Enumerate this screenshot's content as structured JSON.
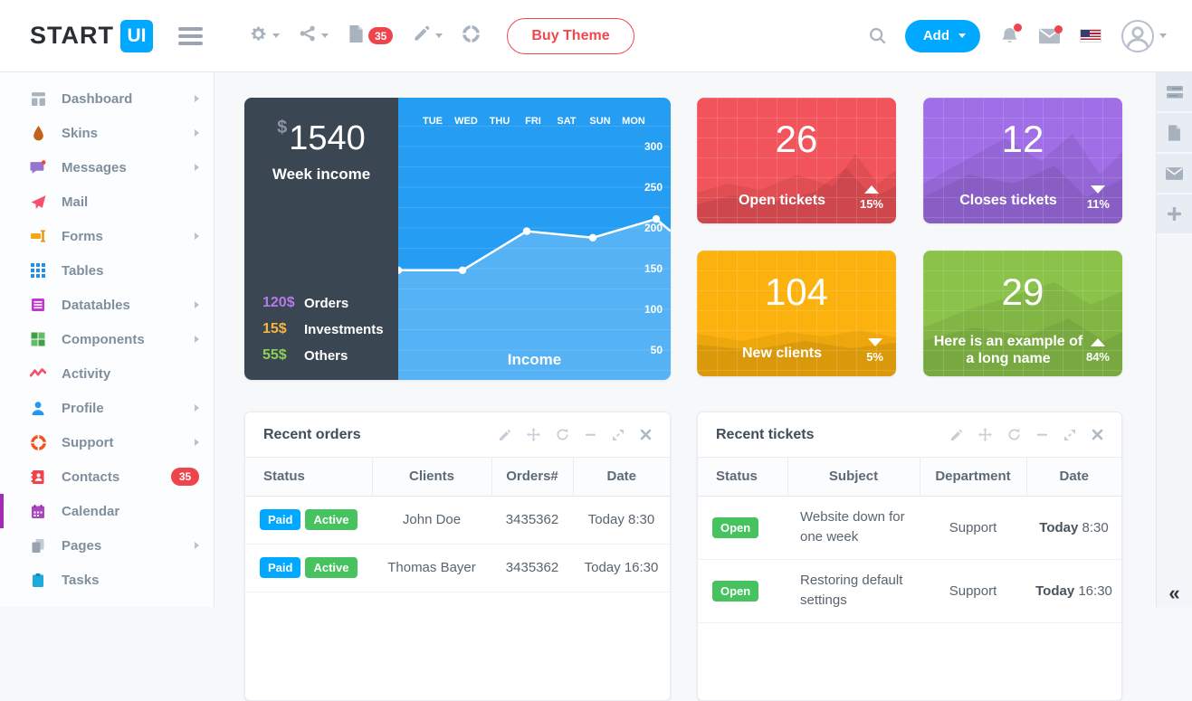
{
  "colors": {
    "accent": "#00a8ff",
    "red": "#f2545b",
    "purple": "#a06ee6",
    "yellow": "#fcb20e",
    "green": "#8ac24a",
    "badge_red": "#f0444c",
    "badge_green": "#46c35f",
    "badge_blue": "#00a8ff",
    "dark_panel": "#3a4651",
    "chart_blue": "#249df3"
  },
  "header": {
    "logo_text": "START",
    "logo_badge": "UI",
    "copy_badge_count": "35",
    "buy_theme_label": "Buy Theme",
    "add_button_label": "Add"
  },
  "sidebar": {
    "items": [
      {
        "label": "Dashboard"
      },
      {
        "label": "Skins"
      },
      {
        "label": "Messages"
      },
      {
        "label": "Mail"
      },
      {
        "label": "Forms"
      },
      {
        "label": "Tables"
      },
      {
        "label": "Datatables"
      },
      {
        "label": "Components"
      },
      {
        "label": "Activity"
      },
      {
        "label": "Profile"
      },
      {
        "label": "Support"
      },
      {
        "label": "Contacts",
        "badge": "35"
      },
      {
        "label": "Calendar"
      },
      {
        "label": "Pages"
      },
      {
        "label": "Tasks"
      }
    ]
  },
  "income_card": {
    "currency": "$",
    "amount": "1540",
    "subtitle": "Week income",
    "legend": [
      {
        "value": "120$",
        "label": "Orders",
        "color": "#b57be8"
      },
      {
        "value": "15$",
        "label": "Investments",
        "color": "#f5b53f"
      },
      {
        "value": "55$",
        "label": "Others",
        "color": "#8ed057"
      }
    ],
    "chart": {
      "type": "line",
      "days": [
        "TUE",
        "WED",
        "THU",
        "FRI",
        "SAT",
        "SUN",
        "MON"
      ],
      "y_ticks": [
        300,
        250,
        200,
        150,
        100,
        50
      ],
      "ylim": [
        25,
        330
      ],
      "points": [
        [
          0,
          148,
          1
        ],
        [
          71,
          148,
          1
        ],
        [
          142,
          196,
          1
        ],
        [
          215,
          188,
          1
        ],
        [
          285,
          211,
          1
        ],
        [
          301,
          196,
          0
        ]
      ],
      "label": "Income"
    }
  },
  "stat_cards": [
    {
      "value": "26",
      "label": "Open tickets",
      "percent": "15%",
      "direction": "up",
      "color": "#f2545b"
    },
    {
      "value": "12",
      "label": "Closes tickets",
      "percent": "11%",
      "direction": "down",
      "color": "#a06ee6"
    },
    {
      "value": "104",
      "label": "New clients",
      "percent": "5%",
      "direction": "down",
      "color": "#fcb20e"
    },
    {
      "value": "29",
      "label": "Here is an example of a long name",
      "percent": "84%",
      "direction": "up",
      "color": "#8ac24a"
    }
  ],
  "orders_panel": {
    "title": "Recent orders",
    "headers": [
      "Status",
      "Clients",
      "Orders#",
      "Date"
    ],
    "rows": [
      {
        "badge1": "Paid",
        "badge2": "Active",
        "client": "John Doe",
        "order": "3435362",
        "date": "Today 8:30"
      },
      {
        "badge1": "Paid",
        "badge2": "Active",
        "client": "Thomas Bayer",
        "order": "3435362",
        "date": "Today 16:30"
      }
    ]
  },
  "tickets_panel": {
    "title": "Recent tickets",
    "headers": [
      "Status",
      "Subject",
      "Department",
      "Date"
    ],
    "rows": [
      {
        "badge": "Open",
        "subject": "Website down for one week",
        "department": "Support",
        "date_bold": "Today",
        "date_time": "8:30"
      },
      {
        "badge": "Open",
        "subject": "Restoring default settings",
        "department": "Support",
        "date_bold": "Today",
        "date_time": "16:30"
      }
    ]
  },
  "rail": {
    "collapse_glyph": "«"
  }
}
